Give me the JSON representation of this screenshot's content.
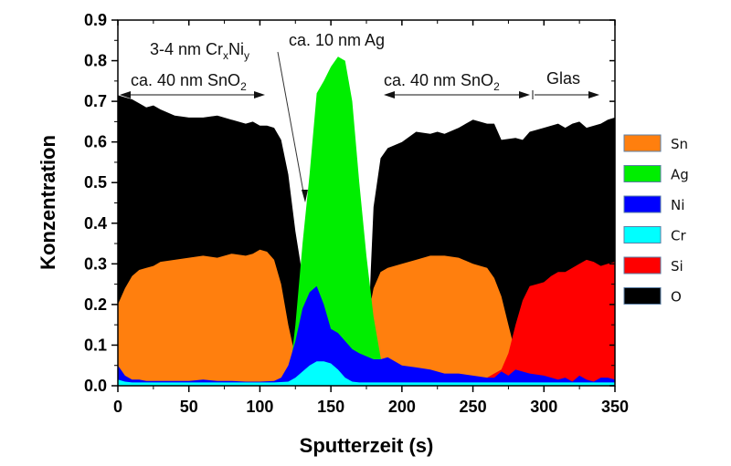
{
  "chart_data": {
    "type": "area",
    "title": "",
    "xlabel": "Sputterzeit (s)",
    "ylabel": "Konzentration",
    "xlim": [
      0,
      350
    ],
    "ylim": [
      0,
      0.9
    ],
    "xticks": [
      0,
      50,
      100,
      150,
      200,
      250,
      300,
      350
    ],
    "xtick_labels": [
      "0",
      "50",
      "100",
      "150",
      "200",
      "250",
      "300",
      "350"
    ],
    "yticks": [
      0.0,
      0.1,
      0.2,
      0.3,
      0.4,
      0.5,
      0.6,
      0.7,
      0.8,
      0.9
    ],
    "ytick_labels": [
      "0.0",
      "0.1",
      "0.2",
      "0.3",
      "0.4",
      "0.5",
      "0.6",
      "0.7",
      "0.8",
      "0.9"
    ],
    "grid": false,
    "legend_position": "right",
    "draw_order": [
      "O",
      "Sn",
      "Ag",
      "Si",
      "Ni",
      "Cr"
    ],
    "legend_order": [
      "Sn",
      "Ag",
      "Ni",
      "Cr",
      "Si",
      "O"
    ],
    "series": [
      {
        "name": "O",
        "color": "#000000",
        "x": [
          0,
          5,
          10,
          15,
          20,
          25,
          30,
          40,
          50,
          60,
          70,
          80,
          90,
          95,
          100,
          105,
          110,
          115,
          120,
          125,
          130,
          135,
          140,
          175,
          178,
          180,
          185,
          190,
          200,
          210,
          220,
          225,
          230,
          240,
          250,
          260,
          265,
          270,
          280,
          285,
          290,
          300,
          310,
          315,
          320,
          325,
          330,
          340,
          345,
          350
        ],
        "y": [
          0.715,
          0.71,
          0.705,
          0.695,
          0.685,
          0.69,
          0.68,
          0.665,
          0.66,
          0.66,
          0.665,
          0.655,
          0.645,
          0.65,
          0.64,
          0.64,
          0.635,
          0.605,
          0.52,
          0.38,
          0.27,
          0.17,
          0.0,
          0.0,
          0.28,
          0.44,
          0.56,
          0.585,
          0.6,
          0.625,
          0.62,
          0.625,
          0.62,
          0.635,
          0.655,
          0.645,
          0.645,
          0.605,
          0.61,
          0.605,
          0.625,
          0.635,
          0.645,
          0.635,
          0.645,
          0.65,
          0.635,
          0.645,
          0.655,
          0.66
        ]
      },
      {
        "name": "Sn",
        "color": "#ff7f0e",
        "x": [
          0,
          5,
          10,
          15,
          20,
          25,
          30,
          40,
          50,
          60,
          70,
          80,
          90,
          95,
          100,
          105,
          110,
          115,
          120,
          125,
          130,
          135,
          140,
          165,
          170,
          175,
          180,
          185,
          190,
          200,
          210,
          220,
          230,
          240,
          250,
          260,
          265,
          270,
          275,
          280,
          285,
          290,
          295,
          300,
          350
        ],
        "y": [
          0.2,
          0.24,
          0.27,
          0.285,
          0.29,
          0.295,
          0.305,
          0.31,
          0.315,
          0.32,
          0.315,
          0.325,
          0.32,
          0.325,
          0.335,
          0.33,
          0.31,
          0.25,
          0.15,
          0.07,
          0.02,
          0.0,
          0.0,
          0.0,
          0.06,
          0.15,
          0.24,
          0.28,
          0.29,
          0.3,
          0.31,
          0.32,
          0.32,
          0.315,
          0.3,
          0.29,
          0.265,
          0.22,
          0.15,
          0.08,
          0.03,
          0.01,
          0.0,
          0.0,
          0.0
        ]
      },
      {
        "name": "Ag",
        "color": "#00ee00",
        "x": [
          0,
          120,
          125,
          130,
          135,
          140,
          145,
          150,
          155,
          160,
          165,
          170,
          175,
          180,
          185,
          190,
          350
        ],
        "y": [
          0.0,
          0.0,
          0.15,
          0.35,
          0.52,
          0.72,
          0.75,
          0.785,
          0.81,
          0.8,
          0.7,
          0.5,
          0.32,
          0.17,
          0.07,
          0.0,
          0.0
        ]
      },
      {
        "name": "Si",
        "color": "#ff0000",
        "x": [
          0,
          255,
          260,
          265,
          270,
          275,
          280,
          285,
          290,
          295,
          300,
          305,
          310,
          315,
          320,
          325,
          330,
          335,
          340,
          345,
          350
        ],
        "y": [
          0.0,
          0.0,
          0.02,
          0.03,
          0.04,
          0.08,
          0.15,
          0.21,
          0.245,
          0.25,
          0.255,
          0.27,
          0.28,
          0.28,
          0.29,
          0.3,
          0.31,
          0.305,
          0.295,
          0.3,
          0.305
        ]
      },
      {
        "name": "Ni",
        "color": "#0000ff",
        "x": [
          0,
          3,
          5,
          10,
          15,
          20,
          30,
          40,
          50,
          60,
          70,
          80,
          90,
          100,
          110,
          115,
          120,
          125,
          130,
          135,
          140,
          145,
          150,
          155,
          160,
          165,
          170,
          180,
          185,
          190,
          195,
          200,
          210,
          220,
          230,
          240,
          250,
          260,
          265,
          270,
          275,
          280,
          290,
          300,
          310,
          315,
          320,
          325,
          330,
          335,
          340,
          345,
          350
        ],
        "y": [
          0.05,
          0.035,
          0.025,
          0.015,
          0.015,
          0.012,
          0.012,
          0.012,
          0.012,
          0.015,
          0.012,
          0.012,
          0.01,
          0.01,
          0.012,
          0.02,
          0.05,
          0.11,
          0.19,
          0.23,
          0.245,
          0.2,
          0.14,
          0.13,
          0.11,
          0.09,
          0.08,
          0.065,
          0.065,
          0.07,
          0.06,
          0.05,
          0.045,
          0.04,
          0.03,
          0.03,
          0.025,
          0.02,
          0.02,
          0.035,
          0.025,
          0.04,
          0.03,
          0.025,
          0.015,
          0.02,
          0.01,
          0.025,
          0.015,
          0.01,
          0.02,
          0.02,
          0.015
        ]
      },
      {
        "name": "Cr",
        "color": "#00ffff",
        "x": [
          0,
          5,
          10,
          30,
          50,
          70,
          90,
          110,
          120,
          125,
          130,
          135,
          140,
          145,
          150,
          155,
          160,
          165,
          170,
          200,
          250,
          300,
          350
        ],
        "y": [
          0.015,
          0.01,
          0.008,
          0.008,
          0.008,
          0.008,
          0.008,
          0.008,
          0.01,
          0.02,
          0.035,
          0.05,
          0.06,
          0.06,
          0.055,
          0.04,
          0.02,
          0.01,
          0.008,
          0.008,
          0.008,
          0.008,
          0.008
        ]
      }
    ],
    "annotations": [
      {
        "id": "sno2-left",
        "text": "ca. 40 nm SnO",
        "sub": "2",
        "x_range": [
          0,
          105
        ]
      },
      {
        "id": "crni",
        "text_1": "3-4 nm Cr",
        "sub_1": "x",
        "text_2": "Ni",
        "sub_2": "y"
      },
      {
        "id": "ag",
        "text": "ca. 10 nm Ag"
      },
      {
        "id": "sno2-right",
        "text": "ca. 40 nm SnO",
        "sub": "2",
        "x_range": [
          190,
          290
        ]
      },
      {
        "id": "glas",
        "text": "Glas",
        "x_range": [
          290,
          345
        ]
      }
    ]
  }
}
